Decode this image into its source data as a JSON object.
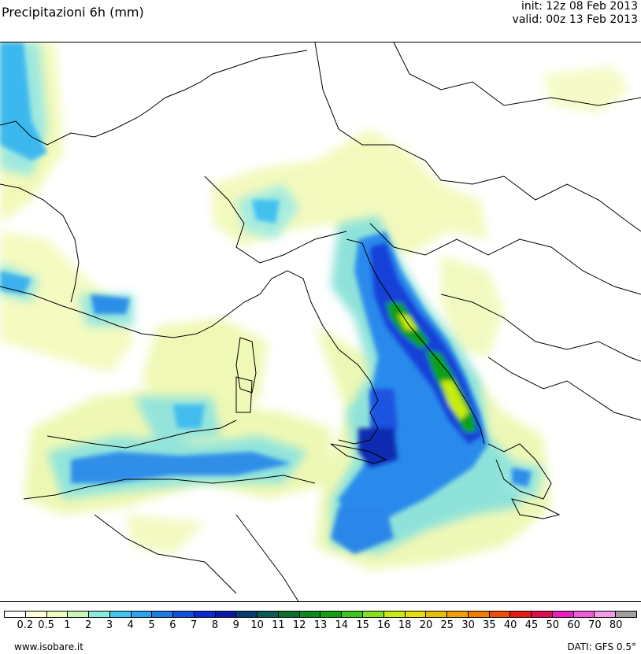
{
  "header": {
    "title": "Precipitazioni 6h (mm)",
    "init": "init: 12z 08 Feb 2013",
    "valid": "valid: 00z 13 Feb 2013"
  },
  "legend": {
    "ticks": [
      "0.2",
      "0.5",
      "1",
      "2",
      "3",
      "4",
      "5",
      "6",
      "7",
      "8",
      "9",
      "10",
      "11",
      "12",
      "13",
      "14",
      "15",
      "16",
      "18",
      "20",
      "25",
      "30",
      "35",
      "40",
      "45",
      "50",
      "60",
      "70",
      "80"
    ],
    "colors": [
      "#ffffff",
      "#ffffd9",
      "#eefcc0",
      "#c8f5b8",
      "#88ebdb",
      "#42c6f0",
      "#2ca3ee",
      "#1f7ae6",
      "#1450e0",
      "#0a2ad6",
      "#0a1aa8",
      "#063c6e",
      "#0a5c50",
      "#0a6e2c",
      "#0c8a1e",
      "#10a010",
      "#3ac81e",
      "#86e01c",
      "#c8ec10",
      "#e6e00a",
      "#e6c000",
      "#eea000",
      "#f07c00",
      "#ee4e0a",
      "#e81a12",
      "#e00c50",
      "#ec1ebe",
      "#f05ad8",
      "#f49ae6",
      "#a09ea0"
    ]
  },
  "footer": {
    "site": "www.isobare.it",
    "source": "DATI: GFS 0.5°"
  }
}
